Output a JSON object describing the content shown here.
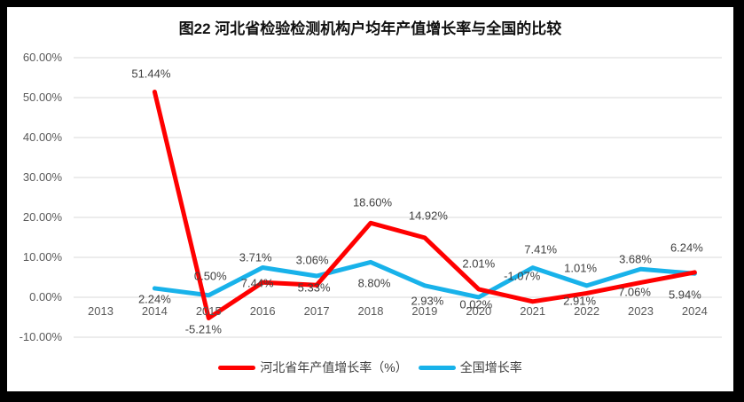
{
  "figure": {
    "frame_color": "#000000",
    "card_color": "#ffffff"
  },
  "chart_data": {
    "type": "line",
    "title": "图22 河北省检验检测机构户均年产值增长率与全国的比较",
    "categories": [
      "2013",
      "2014",
      "2015",
      "2016",
      "2017",
      "2018",
      "2019",
      "2020",
      "2021",
      "2022",
      "2023",
      "2024"
    ],
    "series": [
      {
        "id": "hebei",
        "name": "河北省年产值增长率（%）",
        "color": "#ff0000",
        "values": [
          null,
          51.44,
          -5.21,
          3.71,
          3.06,
          18.6,
          14.92,
          2.01,
          -1.07,
          1.01,
          3.68,
          6.24
        ],
        "labels": [
          "",
          "51.44%",
          "-5.21%",
          "3.71%",
          "3.06%",
          "18.60%",
          "14.92%",
          "2.01%",
          "-1.07%",
          "1.01%",
          "3.68%",
          "6.24%"
        ],
        "label_offsets": [
          [
            0,
            0
          ],
          [
            -4,
            -21
          ],
          [
            -6,
            13
          ],
          [
            -8,
            -28
          ],
          [
            -5,
            -28
          ],
          [
            2,
            -23
          ],
          [
            4,
            -25
          ],
          [
            0,
            -29
          ],
          [
            -12,
            -29
          ],
          [
            -7,
            -28
          ],
          [
            -6,
            -26
          ],
          [
            -9,
            -28
          ]
        ]
      },
      {
        "id": "national",
        "name": "全国增长率",
        "color": "#18b2ea",
        "values": [
          null,
          2.24,
          0.5,
          7.44,
          5.33,
          8.8,
          2.93,
          0.02,
          7.41,
          2.91,
          7.06,
          5.94
        ],
        "labels": [
          "",
          "2.24%",
          "0.50%",
          "7.44%",
          "5.33%",
          "8.80%",
          "2.93%",
          "0.02%",
          "7.41%",
          "2.91%",
          "7.06%",
          "5.94%"
        ],
        "label_offsets": [
          [
            0,
            0
          ],
          [
            0,
            12
          ],
          [
            2,
            -22
          ],
          [
            -6,
            17
          ],
          [
            -3,
            13
          ],
          [
            4,
            24
          ],
          [
            3,
            17
          ],
          [
            -3,
            8
          ],
          [
            9,
            -21
          ],
          [
            -8,
            17
          ],
          [
            -7,
            26
          ],
          [
            -11,
            24
          ]
        ]
      }
    ],
    "y_axis": {
      "min": -10,
      "max": 60,
      "step": 10,
      "tick_labels": [
        "60.00%",
        "50.00%",
        "40.00%",
        "30.00%",
        "20.00%",
        "10.00%",
        "0.00%",
        "-10.00%"
      ]
    },
    "grid": true,
    "gridline_color": "#d9d9d9",
    "axis_text_color": "#595959",
    "label_text_color": "#404040",
    "legend_position": "bottom"
  }
}
